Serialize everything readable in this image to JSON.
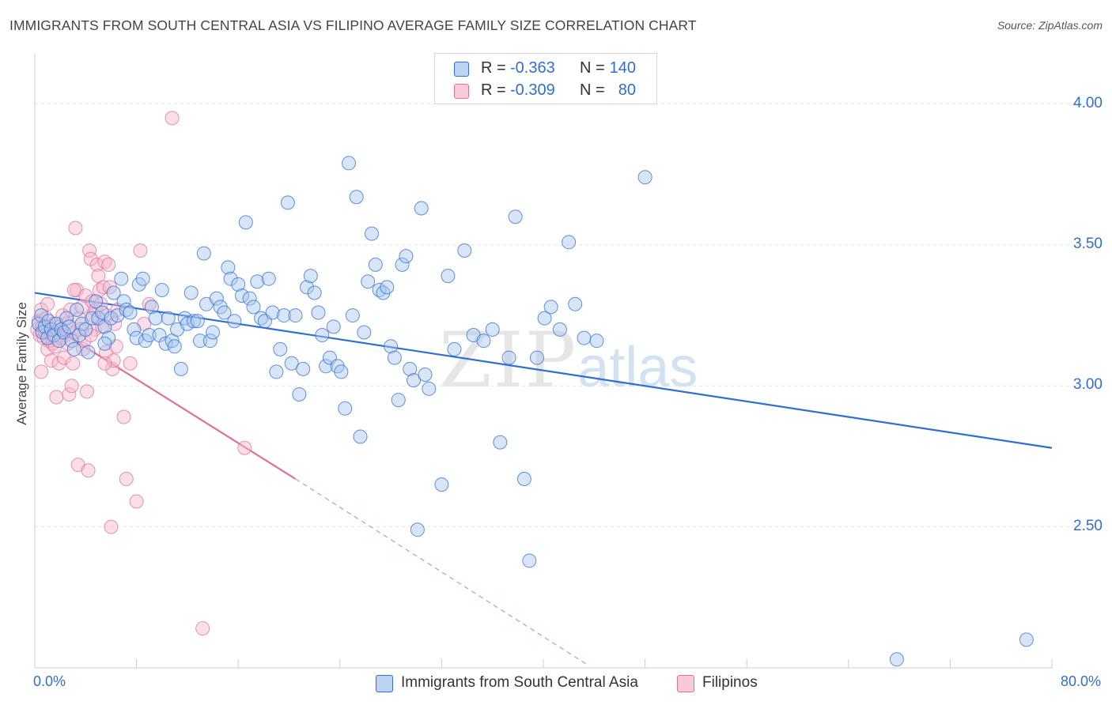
{
  "title": "IMMIGRANTS FROM SOUTH CENTRAL ASIA VS FILIPINO AVERAGE FAMILY SIZE CORRELATION CHART",
  "source": "Source: ZipAtlas.com",
  "watermark": {
    "zip": "ZIP",
    "atlas": "atlas"
  },
  "colors": {
    "blue": "#2f6fd0",
    "blue_fill": "#a9c6ee",
    "pink": "#e0709a",
    "pink_fill": "#f5b8cc",
    "grid": "#e5e5e5"
  },
  "legend": {
    "r_label": "R =",
    "n_label": "N =",
    "series": [
      {
        "r": "-0.363",
        "n": "140"
      },
      {
        "r": "-0.309",
        "n": "80"
      }
    ]
  },
  "chart_data": {
    "type": "scatter",
    "title": "IMMIGRANTS FROM SOUTH CENTRAL ASIA VS FILIPINO AVERAGE FAMILY SIZE CORRELATION CHART",
    "xlabel": "",
    "ylabel": "Average Family Size",
    "xlim": [
      0,
      80
    ],
    "ylim": [
      2.0,
      4.15
    ],
    "x_tick_labels": [
      "0.0%",
      "80.0%"
    ],
    "y_ticks": [
      2.5,
      3.0,
      3.5,
      4.0
    ],
    "y_tick_labels": [
      "2.50",
      "3.00",
      "3.50",
      "4.00"
    ],
    "grid": true,
    "legend_placement": "top-center",
    "series": [
      {
        "name": "Immigrants from South Central Asia",
        "color": "#2f6fd0",
        "trend": {
          "x0": 0,
          "y0": 3.33,
          "x1": 80,
          "y1": 2.78
        },
        "points": [
          [
            0.3,
            3.22
          ],
          [
            0.5,
            3.25
          ],
          [
            0.6,
            3.19
          ],
          [
            0.8,
            3.21
          ],
          [
            1.0,
            3.17
          ],
          [
            1.1,
            3.23
          ],
          [
            1.3,
            3.2
          ],
          [
            1.5,
            3.18
          ],
          [
            1.7,
            3.22
          ],
          [
            1.9,
            3.16
          ],
          [
            2.1,
            3.2
          ],
          [
            2.3,
            3.19
          ],
          [
            2.5,
            3.24
          ],
          [
            2.7,
            3.21
          ],
          [
            2.9,
            3.16
          ],
          [
            3.1,
            3.13
          ],
          [
            3.3,
            3.27
          ],
          [
            3.5,
            3.18
          ],
          [
            3.7,
            3.22
          ],
          [
            4.0,
            3.2
          ],
          [
            4.2,
            3.12
          ],
          [
            4.5,
            3.24
          ],
          [
            4.8,
            3.3
          ],
          [
            5.0,
            3.24
          ],
          [
            5.3,
            3.26
          ],
          [
            5.5,
            3.21
          ],
          [
            5.8,
            3.17
          ],
          [
            5.5,
            3.15
          ],
          [
            6.0,
            3.24
          ],
          [
            6.2,
            3.33
          ],
          [
            6.5,
            3.25
          ],
          [
            6.8,
            3.38
          ],
          [
            7.0,
            3.3
          ],
          [
            7.2,
            3.27
          ],
          [
            7.5,
            3.26
          ],
          [
            7.8,
            3.2
          ],
          [
            8.0,
            3.17
          ],
          [
            8.2,
            3.36
          ],
          [
            8.5,
            3.38
          ],
          [
            8.7,
            3.16
          ],
          [
            9.0,
            3.18
          ],
          [
            9.2,
            3.28
          ],
          [
            9.5,
            3.24
          ],
          [
            9.8,
            3.18
          ],
          [
            10.0,
            3.34
          ],
          [
            10.3,
            3.15
          ],
          [
            10.5,
            3.24
          ],
          [
            10.8,
            3.16
          ],
          [
            11.0,
            3.14
          ],
          [
            11.2,
            3.2
          ],
          [
            11.5,
            3.06
          ],
          [
            11.8,
            3.24
          ],
          [
            12.0,
            3.22
          ],
          [
            12.3,
            3.33
          ],
          [
            12.5,
            3.23
          ],
          [
            12.8,
            3.23
          ],
          [
            13.0,
            3.16
          ],
          [
            13.3,
            3.47
          ],
          [
            13.5,
            3.29
          ],
          [
            13.8,
            3.16
          ],
          [
            14.0,
            3.19
          ],
          [
            14.3,
            3.31
          ],
          [
            14.6,
            3.28
          ],
          [
            14.9,
            3.26
          ],
          [
            15.2,
            3.42
          ],
          [
            15.4,
            3.38
          ],
          [
            15.7,
            3.23
          ],
          [
            16.0,
            3.36
          ],
          [
            16.3,
            3.32
          ],
          [
            16.6,
            3.58
          ],
          [
            16.9,
            3.31
          ],
          [
            17.2,
            3.28
          ],
          [
            17.5,
            3.37
          ],
          [
            17.8,
            3.24
          ],
          [
            18.1,
            3.23
          ],
          [
            18.4,
            3.38
          ],
          [
            18.7,
            3.26
          ],
          [
            19.0,
            3.05
          ],
          [
            19.3,
            3.13
          ],
          [
            19.6,
            3.25
          ],
          [
            19.9,
            3.65
          ],
          [
            20.2,
            3.08
          ],
          [
            20.5,
            3.25
          ],
          [
            20.8,
            2.97
          ],
          [
            21.1,
            3.06
          ],
          [
            21.4,
            3.35
          ],
          [
            21.7,
            3.39
          ],
          [
            22.0,
            3.33
          ],
          [
            22.3,
            3.26
          ],
          [
            22.6,
            3.18
          ],
          [
            22.9,
            3.07
          ],
          [
            23.2,
            3.1
          ],
          [
            23.5,
            3.21
          ],
          [
            23.8,
            3.07
          ],
          [
            24.1,
            3.05
          ],
          [
            24.4,
            2.92
          ],
          [
            24.7,
            3.79
          ],
          [
            25.0,
            3.25
          ],
          [
            25.3,
            3.67
          ],
          [
            25.6,
            2.82
          ],
          [
            25.9,
            3.19
          ],
          [
            26.2,
            3.37
          ],
          [
            26.5,
            3.54
          ],
          [
            26.8,
            3.43
          ],
          [
            27.1,
            3.34
          ],
          [
            27.4,
            3.33
          ],
          [
            27.7,
            3.35
          ],
          [
            28.0,
            3.14
          ],
          [
            28.3,
            3.1
          ],
          [
            28.6,
            2.95
          ],
          [
            28.9,
            3.43
          ],
          [
            29.2,
            3.46
          ],
          [
            29.5,
            3.06
          ],
          [
            29.8,
            3.02
          ],
          [
            30.1,
            2.49
          ],
          [
            30.4,
            3.63
          ],
          [
            30.7,
            3.04
          ],
          [
            31.0,
            2.99
          ],
          [
            32.0,
            2.65
          ],
          [
            32.5,
            3.39
          ],
          [
            33.0,
            3.13
          ],
          [
            33.8,
            3.48
          ],
          [
            34.5,
            3.18
          ],
          [
            35.3,
            3.16
          ],
          [
            36.0,
            3.2
          ],
          [
            36.6,
            2.8
          ],
          [
            37.3,
            3.1
          ],
          [
            37.8,
            3.6
          ],
          [
            38.5,
            2.67
          ],
          [
            38.9,
            2.38
          ],
          [
            39.5,
            3.1
          ],
          [
            40.1,
            3.24
          ],
          [
            40.6,
            3.28
          ],
          [
            41.3,
            3.2
          ],
          [
            42.0,
            3.51
          ],
          [
            42.5,
            3.29
          ],
          [
            43.2,
            3.17
          ],
          [
            44.2,
            3.16
          ],
          [
            48.0,
            3.74
          ],
          [
            67.8,
            2.03
          ],
          [
            78.0,
            2.1
          ]
        ]
      },
      {
        "name": "Filipinos",
        "color": "#e0709a",
        "trend": {
          "x0": 0,
          "y0": 3.25,
          "x1": 20.5,
          "y1": 2.67,
          "dash_x1": 43.5,
          "dash_y1": 2.01
        },
        "points": [
          [
            0.2,
            3.2
          ],
          [
            0.3,
            3.23
          ],
          [
            0.4,
            3.18
          ],
          [
            0.5,
            3.27
          ],
          [
            0.5,
            3.05
          ],
          [
            0.6,
            3.21
          ],
          [
            0.7,
            3.17
          ],
          [
            0.8,
            3.19
          ],
          [
            0.9,
            3.24
          ],
          [
            1.0,
            3.13
          ],
          [
            1.0,
            3.29
          ],
          [
            1.1,
            3.16
          ],
          [
            1.2,
            3.21
          ],
          [
            1.3,
            3.09
          ],
          [
            1.3,
            3.18
          ],
          [
            1.4,
            3.15
          ],
          [
            1.5,
            3.22
          ],
          [
            1.6,
            3.14
          ],
          [
            1.7,
            2.96
          ],
          [
            1.8,
            3.19
          ],
          [
            1.9,
            3.08
          ],
          [
            2.0,
            3.21
          ],
          [
            2.1,
            3.17
          ],
          [
            2.2,
            3.25
          ],
          [
            2.3,
            3.1
          ],
          [
            2.4,
            3.18
          ],
          [
            2.5,
            3.22
          ],
          [
            2.6,
            3.15
          ],
          [
            2.7,
            2.97
          ],
          [
            2.8,
            3.27
          ],
          [
            2.9,
            3.0
          ],
          [
            3.0,
            3.08
          ],
          [
            3.1,
            3.19
          ],
          [
            3.2,
            3.56
          ],
          [
            3.3,
            3.34
          ],
          [
            3.4,
            2.72
          ],
          [
            3.5,
            3.24
          ],
          [
            3.6,
            3.2
          ],
          [
            3.7,
            3.28
          ],
          [
            3.8,
            3.13
          ],
          [
            3.9,
            3.16
          ],
          [
            4.0,
            3.32
          ],
          [
            4.1,
            2.98
          ],
          [
            4.2,
            2.7
          ],
          [
            4.3,
            3.48
          ],
          [
            4.4,
            3.45
          ],
          [
            4.5,
            3.3
          ],
          [
            4.6,
            3.25
          ],
          [
            4.7,
            3.2
          ],
          [
            4.8,
            3.27
          ],
          [
            4.9,
            3.43
          ],
          [
            5.0,
            3.39
          ],
          [
            5.1,
            3.34
          ],
          [
            5.2,
            3.29
          ],
          [
            5.3,
            3.21
          ],
          [
            5.4,
            3.35
          ],
          [
            5.5,
            3.44
          ],
          [
            5.6,
            3.12
          ],
          [
            5.7,
            3.25
          ],
          [
            5.8,
            3.43
          ],
          [
            5.9,
            3.35
          ],
          [
            6.0,
            2.5
          ],
          [
            6.1,
            3.06
          ],
          [
            6.2,
            3.09
          ],
          [
            6.3,
            3.22
          ],
          [
            6.4,
            3.14
          ],
          [
            6.5,
            3.27
          ],
          [
            7.0,
            2.89
          ],
          [
            7.2,
            2.67
          ],
          [
            7.5,
            3.08
          ],
          [
            8.0,
            2.59
          ],
          [
            8.3,
            3.48
          ],
          [
            8.6,
            3.22
          ],
          [
            9.0,
            3.29
          ],
          [
            5.5,
            3.08
          ],
          [
            3.1,
            3.34
          ],
          [
            4.4,
            3.18
          ],
          [
            13.2,
            2.14
          ],
          [
            10.8,
            3.95
          ],
          [
            16.5,
            2.78
          ]
        ]
      }
    ]
  }
}
